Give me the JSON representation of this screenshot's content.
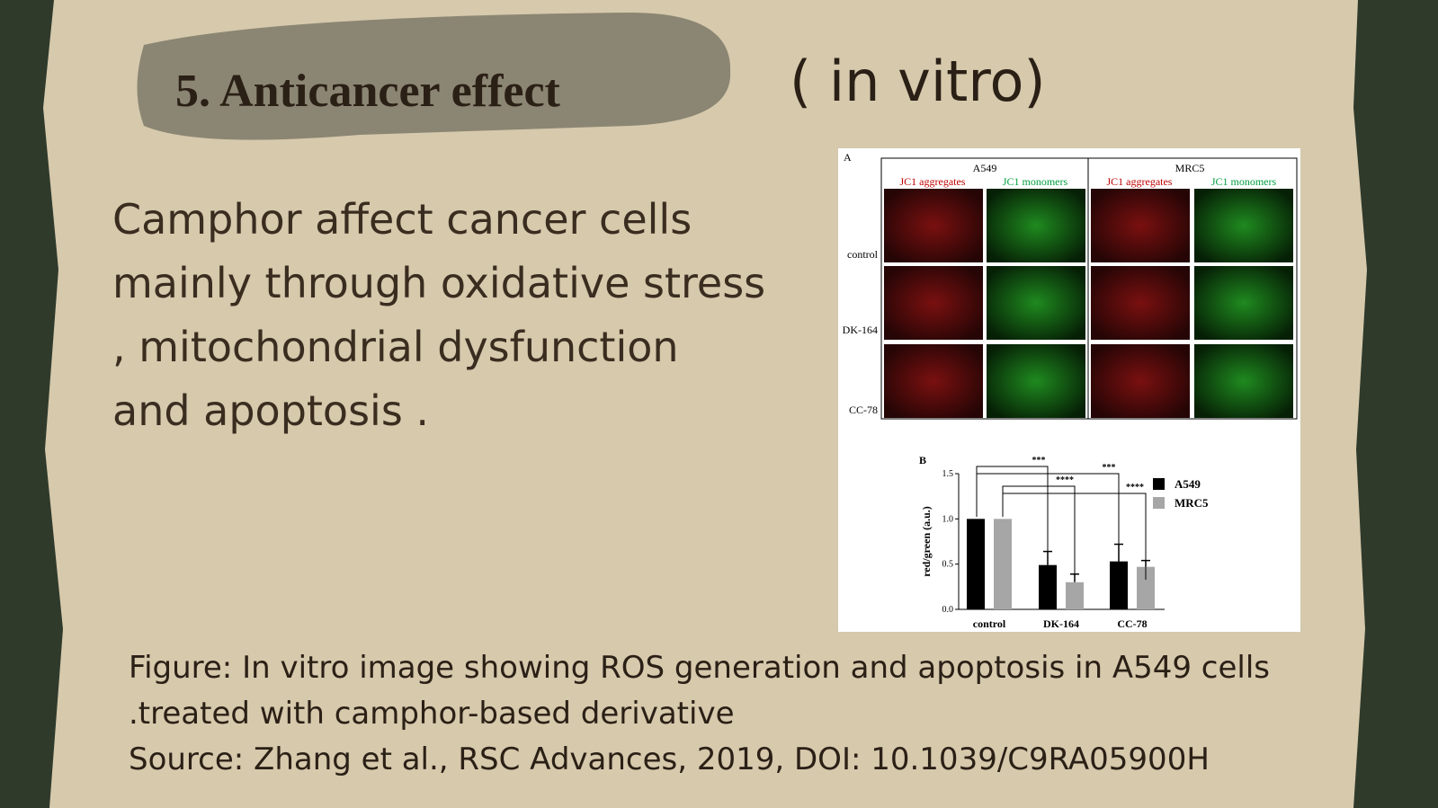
{
  "header": {
    "title": "5. Anticancer effect",
    "subtitle": "( in vitro)"
  },
  "body": {
    "lines": [
      "Camphor affect cancer cells",
      "mainly through  oxidative stress",
      ", mitochondrial dysfunction",
      "and  apoptosis ."
    ]
  },
  "figure": {
    "panel_a": {
      "label": "A",
      "groups": [
        "A549",
        "MRC5"
      ],
      "channels": [
        "JC1 aggregates",
        "JC1 monomers",
        "JC1 aggregates",
        "JC1 monomers"
      ],
      "rows": [
        "control",
        "DK-164",
        "CC-78"
      ]
    },
    "panel_b_label": "B"
  },
  "chart_data": {
    "type": "bar",
    "y_label": "red/green (a.u.)",
    "categories": [
      "control",
      "DK-164",
      "CC-78"
    ],
    "series": [
      {
        "name": "A549",
        "color": "#000000",
        "values": [
          1.0,
          0.49,
          0.53
        ],
        "errors": [
          0,
          0.15,
          0.19
        ]
      },
      {
        "name": "MRC5",
        "color": "#a6a6a6",
        "values": [
          1.0,
          0.3,
          0.47
        ],
        "errors": [
          0,
          0.09,
          0.07
        ]
      }
    ],
    "ylim": [
      0,
      1.5
    ],
    "yticks": [
      {
        "value": 0,
        "label": "0.0"
      },
      0.5,
      {
        "value": 1,
        "label": "1.0"
      },
      1.5
    ],
    "significance": [
      "***",
      "****",
      "***",
      "****"
    ],
    "legend": "upper right"
  },
  "caption": {
    "lines": [
      "Figure: In vitro image showing ROS generation and apoptosis in A549 cells",
      ".treated with camphor-based derivative",
      "Source: Zhang et al., RSC Advances, 2019, DOI: 10.1039/C9RA05900H"
    ]
  }
}
